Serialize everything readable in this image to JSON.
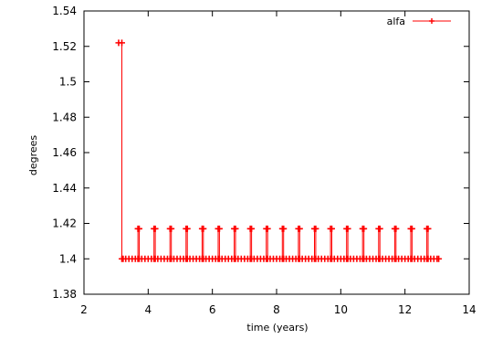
{
  "chart_data": {
    "type": "line",
    "title": "",
    "xlabel": "time (years)",
    "ylabel": "degrees",
    "xlim": [
      2,
      14
    ],
    "ylim": [
      1.38,
      1.54
    ],
    "x_ticks": [
      2,
      4,
      6,
      8,
      10,
      12,
      14
    ],
    "x_tick_labels": [
      "2",
      "4",
      "6",
      "8",
      "10",
      "12",
      "14"
    ],
    "y_ticks": [
      1.38,
      1.4,
      1.42,
      1.44,
      1.46,
      1.48,
      1.5,
      1.52,
      1.54
    ],
    "y_tick_labels": [
      "1.38",
      "1.4",
      "1.42",
      "1.44",
      "1.46",
      "1.48",
      "1.5",
      "1.52",
      "1.54"
    ],
    "grid": false,
    "legend_position": "top-right",
    "series": [
      {
        "name": "alfa",
        "color": "#ff0000",
        "marker": "plus",
        "x": [
          3.08,
          3.18,
          3.18,
          3.22,
          3.3,
          3.4,
          3.5,
          3.6,
          3.68,
          3.68,
          3.72,
          3.72,
          3.8,
          3.9,
          4.0,
          4.1,
          4.18,
          4.18,
          4.22,
          4.22,
          4.3,
          4.4,
          4.5,
          4.6,
          4.68,
          4.68,
          4.72,
          4.72,
          4.8,
          4.9,
          5.0,
          5.1,
          5.18,
          5.18,
          5.22,
          5.22,
          5.3,
          5.4,
          5.5,
          5.6,
          5.68,
          5.68,
          5.72,
          5.72,
          5.8,
          5.9,
          6.0,
          6.1,
          6.18,
          6.18,
          6.22,
          6.22,
          6.3,
          6.4,
          6.5,
          6.6,
          6.68,
          6.68,
          6.72,
          6.72,
          6.8,
          6.9,
          7.0,
          7.1,
          7.18,
          7.18,
          7.22,
          7.22,
          7.3,
          7.4,
          7.5,
          7.6,
          7.68,
          7.68,
          7.72,
          7.72,
          7.8,
          7.9,
          8.0,
          8.1,
          8.18,
          8.18,
          8.22,
          8.22,
          8.3,
          8.4,
          8.5,
          8.6,
          8.68,
          8.68,
          8.72,
          8.72,
          8.8,
          8.9,
          9.0,
          9.1,
          9.18,
          9.18,
          9.22,
          9.22,
          9.3,
          9.4,
          9.5,
          9.6,
          9.68,
          9.68,
          9.72,
          9.72,
          9.8,
          9.9,
          10.0,
          10.1,
          10.18,
          10.18,
          10.22,
          10.22,
          10.3,
          10.4,
          10.5,
          10.6,
          10.68,
          10.68,
          10.72,
          10.72,
          10.8,
          10.9,
          11.0,
          11.1,
          11.18,
          11.18,
          11.22,
          11.22,
          11.3,
          11.4,
          11.5,
          11.6,
          11.68,
          11.68,
          11.72,
          11.72,
          11.8,
          11.9,
          12.0,
          12.1,
          12.18,
          12.18,
          12.22,
          12.22,
          12.3,
          12.4,
          12.5,
          12.6,
          12.68,
          12.68,
          12.72,
          12.72,
          12.8,
          12.9,
          13.0,
          13.05
        ],
        "y": [
          1.522,
          1.522,
          1.4,
          1.4,
          1.4,
          1.4,
          1.4,
          1.4,
          1.4,
          1.417,
          1.417,
          1.4,
          1.4,
          1.4,
          1.4,
          1.4,
          1.4,
          1.417,
          1.417,
          1.4,
          1.4,
          1.4,
          1.4,
          1.4,
          1.4,
          1.417,
          1.417,
          1.4,
          1.4,
          1.4,
          1.4,
          1.4,
          1.4,
          1.417,
          1.417,
          1.4,
          1.4,
          1.4,
          1.4,
          1.4,
          1.4,
          1.417,
          1.417,
          1.4,
          1.4,
          1.4,
          1.4,
          1.4,
          1.4,
          1.417,
          1.417,
          1.4,
          1.4,
          1.4,
          1.4,
          1.4,
          1.4,
          1.417,
          1.417,
          1.4,
          1.4,
          1.4,
          1.4,
          1.4,
          1.4,
          1.417,
          1.417,
          1.4,
          1.4,
          1.4,
          1.4,
          1.4,
          1.4,
          1.417,
          1.417,
          1.4,
          1.4,
          1.4,
          1.4,
          1.4,
          1.4,
          1.417,
          1.417,
          1.4,
          1.4,
          1.4,
          1.4,
          1.4,
          1.4,
          1.417,
          1.417,
          1.4,
          1.4,
          1.4,
          1.4,
          1.4,
          1.4,
          1.417,
          1.417,
          1.4,
          1.4,
          1.4,
          1.4,
          1.4,
          1.4,
          1.417,
          1.417,
          1.4,
          1.4,
          1.4,
          1.4,
          1.4,
          1.4,
          1.417,
          1.417,
          1.4,
          1.4,
          1.4,
          1.4,
          1.4,
          1.4,
          1.417,
          1.417,
          1.4,
          1.4,
          1.4,
          1.4,
          1.4,
          1.4,
          1.417,
          1.417,
          1.4,
          1.4,
          1.4,
          1.4,
          1.4,
          1.4,
          1.417,
          1.417,
          1.4,
          1.4,
          1.4,
          1.4,
          1.4,
          1.4,
          1.417,
          1.417,
          1.4,
          1.4,
          1.4,
          1.4,
          1.4,
          1.4,
          1.417,
          1.417,
          1.4,
          1.4,
          1.4,
          1.4,
          1.4
        ]
      }
    ]
  }
}
